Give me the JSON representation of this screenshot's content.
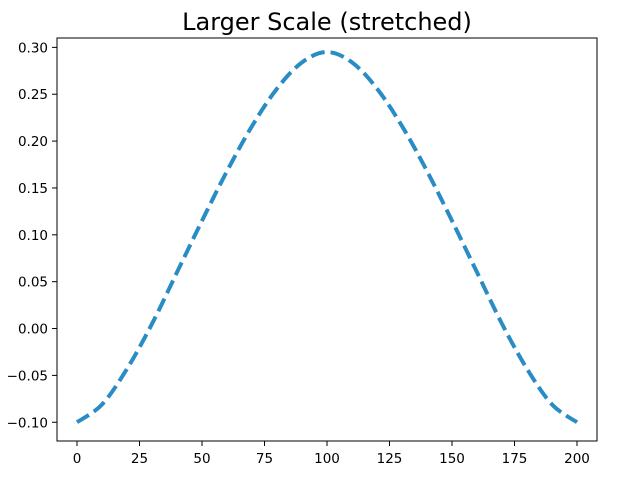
{
  "chart_data": {
    "type": "line",
    "title": "Larger Scale (stretched)",
    "xlabel": "",
    "ylabel": "",
    "xlim": [
      -8,
      208
    ],
    "ylim": [
      -0.12,
      0.31
    ],
    "x_ticks": [
      0,
      25,
      50,
      75,
      100,
      125,
      150,
      175,
      200
    ],
    "y_ticks": [
      -0.1,
      -0.05,
      0.0,
      0.05,
      0.1,
      0.15,
      0.2,
      0.25,
      0.3
    ],
    "y_tick_labels": [
      "−0.10",
      "−0.05",
      "0.00",
      "0.05",
      "0.10",
      "0.15",
      "0.20",
      "0.25",
      "0.30"
    ],
    "grid": false,
    "line_style": "dashed",
    "series": [
      {
        "color": "#2a8cc4",
        "x": [
          0,
          10,
          20,
          30,
          40,
          50,
          60,
          70,
          80,
          90,
          100,
          110,
          120,
          130,
          140,
          150,
          160,
          170,
          180,
          190,
          200
        ],
        "y": [
          -0.1,
          -0.081,
          -0.043,
          0.005,
          0.06,
          0.115,
          0.168,
          0.216,
          0.256,
          0.284,
          0.295,
          0.284,
          0.256,
          0.216,
          0.168,
          0.115,
          0.06,
          0.005,
          -0.043,
          -0.081,
          -0.1
        ]
      }
    ]
  }
}
